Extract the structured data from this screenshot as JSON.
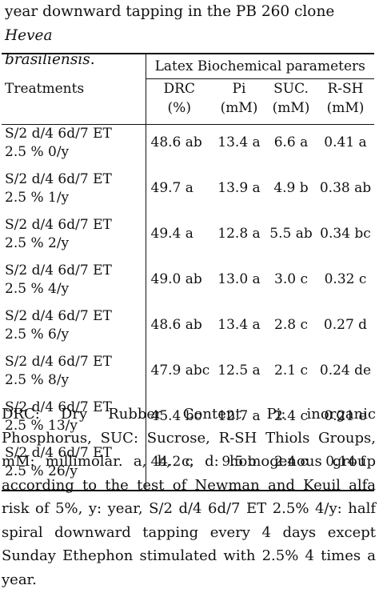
{
  "caption": {
    "line1": "year downward tapping in the PB 260 clone ",
    "line1_italic": "Hevea",
    "line2_italic": "brasiliensis",
    "line2_end": "."
  },
  "table": {
    "group_header": "Latex Biochemical parameters",
    "treatments_header": "Treatments",
    "columns": [
      {
        "line1": "DRC",
        "line2": "(%)"
      },
      {
        "line1": "Pi",
        "line2": "(mM)"
      },
      {
        "line1": "SUC.",
        "line2": "(mM)"
      },
      {
        "line1": "R-SH",
        "line2": "(mM)"
      }
    ],
    "rows": [
      {
        "t1": "S/2 d/4 6d/7 ET",
        "t2": "2.5 % 0/y",
        "drc": "48.6 ab",
        "pi": "13.4 a",
        "suc": "6.6 a",
        "rsh": "0.41 a"
      },
      {
        "t1": "S/2 d/4 6d/7 ET",
        "t2": "2.5 % 1/y",
        "drc": "49.7 a",
        "pi": "13.9 a",
        "suc": "4.9 b",
        "rsh": "0.38 ab"
      },
      {
        "t1": "S/2 d/4 6d/7 ET",
        "t2": "2.5 % 2/y",
        "drc": "49.4 a",
        "pi": "12.8 a",
        "suc": "5.5 ab",
        "rsh": "0.34 bc"
      },
      {
        "t1": "S/2 d/4 6d/7 ET",
        "t2": "2.5 % 4/y",
        "drc": "49.0 ab",
        "pi": "13.0 a",
        "suc": "3.0 c",
        "rsh": "0.32 c"
      },
      {
        "t1": "S/2 d/4 6d/7 ET",
        "t2": "2.5 % 6/y",
        "drc": "48.6 ab",
        "pi": "13.4 a",
        "suc": "2.8 c",
        "rsh": "0.27 d"
      },
      {
        "t1": "S/2 d/4 6d/7 ET",
        "t2": "2.5 % 8/y",
        "drc": "47.9 abc",
        "pi": "12.5 a",
        "suc": "2.1 c",
        "rsh": "0.24 de"
      },
      {
        "t1": "S/2 d/4 6d/7 ET",
        "t2": "2.5 % 13/y",
        "drc": "45.4 bc",
        "pi": "12.7 a",
        "suc": "2.4 c",
        "rsh": "0.21 e"
      },
      {
        "t1": "S/2 d/4 6d/7 ET",
        "t2": "2.5 % 26/y",
        "drc": "44.2 c",
        "pi": "9.5 b",
        "suc": "2.4 c",
        "rsh": "0.14 f"
      }
    ]
  },
  "footnote": "DRC: Dry Rubber Content, Pi: inorganic Phosphorus, SUC: Sucrose, R-SH Thiols Groups, mM: millimolar. a, b, c, d: homogenous group according to the test of Newman and Keuil alfa risk of 5%, y: year, S/2 d/4 6d/7 ET 2.5% 4/y: half spiral downward tapping every 4 days except Sunday Ethephon stimulated with 2.5% 4 times a year."
}
